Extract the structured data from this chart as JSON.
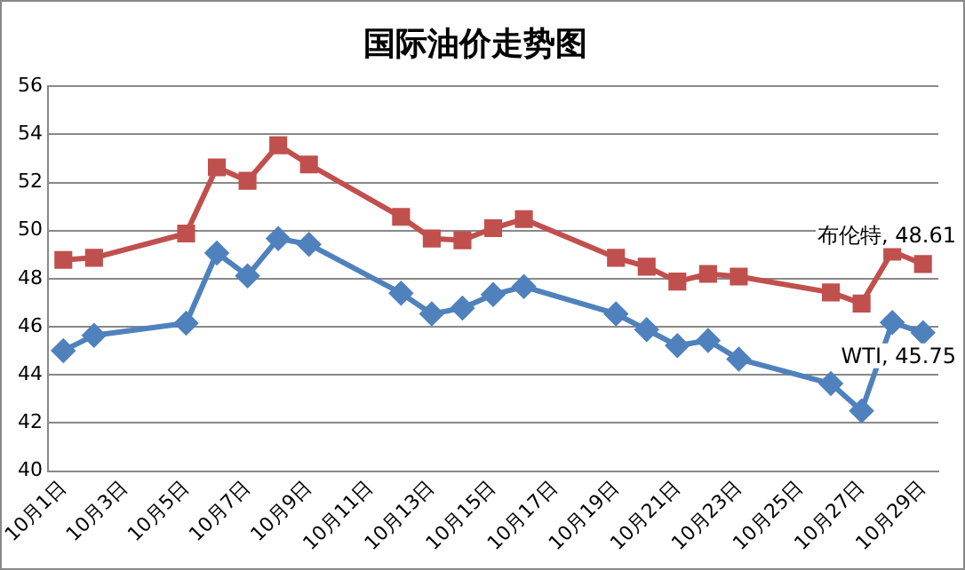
{
  "chart_data": {
    "type": "line",
    "title": "国际油价走势图",
    "xlim": [
      "--09-30T12:00",
      "--10-29T12:00"
    ],
    "xticks": [
      {
        "value": "--10-01",
        "label": "10月1日"
      },
      {
        "value": "--10-03",
        "label": "10月3日"
      },
      {
        "value": "--10-05",
        "label": "10月5日"
      },
      {
        "value": "--10-07",
        "label": "10月7日"
      },
      {
        "value": "--10-09",
        "label": "10月9日"
      },
      {
        "value": "--10-11",
        "label": "10月11日"
      },
      {
        "value": "--10-13",
        "label": "10月13日"
      },
      {
        "value": "--10-15",
        "label": "10月15日"
      },
      {
        "value": "--10-17",
        "label": "10月17日"
      },
      {
        "value": "--10-19",
        "label": "10月19日"
      },
      {
        "value": "--10-21",
        "label": "10月21日"
      },
      {
        "value": "--10-23",
        "label": "10月23日"
      },
      {
        "value": "--10-25",
        "label": "10月25日"
      },
      {
        "value": "--10-27",
        "label": "10月27日"
      },
      {
        "value": "--10-29",
        "label": "10月29日"
      }
    ],
    "x": [
      "--10-01",
      "--10-02",
      "--10-05",
      "--10-06",
      "--10-07",
      "--10-08",
      "--10-09",
      "--10-12",
      "--10-13",
      "--10-14",
      "--10-15",
      "--10-16",
      "--10-19",
      "--10-20",
      "--10-21",
      "--10-22",
      "--10-23",
      "--10-26",
      "--10-27",
      "--10-28",
      "--10-29"
    ],
    "ylim": [
      40,
      56
    ],
    "yticks": [
      40,
      42,
      44,
      46,
      48,
      50,
      52,
      54,
      56
    ],
    "grid": "y",
    "legend": false,
    "line_style": "solid",
    "series": [
      {
        "color": "#c0504d",
        "marker": "square",
        "values": [
          48.78,
          48.87,
          49.88,
          52.63,
          52.07,
          53.55,
          52.75,
          50.57,
          49.67,
          49.6,
          50.1,
          50.48,
          48.87,
          48.5,
          47.88,
          48.2,
          48.09,
          47.43,
          46.97,
          49.13,
          48.61
        ],
        "value_labels": [
          null,
          null,
          null,
          null,
          null,
          null,
          null,
          null,
          null,
          null,
          null,
          null,
          null,
          null,
          null,
          null,
          null,
          null,
          null,
          null,
          "布伦特, 48.61"
        ]
      },
      {
        "color": "#4f81bd",
        "marker": "diamond",
        "values": [
          45.01,
          45.64,
          46.15,
          49.07,
          48.12,
          49.67,
          49.43,
          47.4,
          46.54,
          46.78,
          47.34,
          47.67,
          46.54,
          45.88,
          45.22,
          45.43,
          44.66,
          43.64,
          42.51,
          46.18,
          45.75
        ],
        "value_labels": [
          null,
          null,
          null,
          null,
          null,
          null,
          null,
          null,
          null,
          null,
          null,
          null,
          null,
          null,
          null,
          null,
          null,
          null,
          null,
          null,
          "WTI, 45.75"
        ]
      }
    ]
  }
}
